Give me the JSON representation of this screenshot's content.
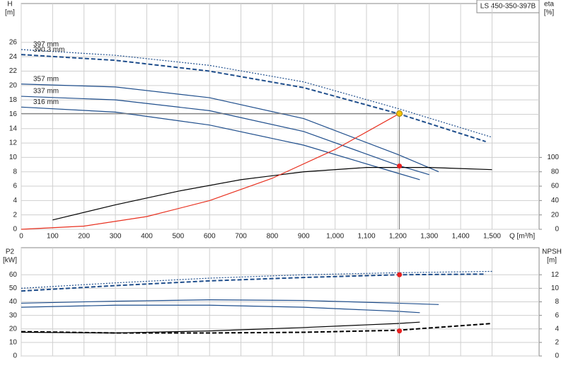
{
  "chart_data": [
    {
      "type": "line",
      "title": "LS 450-350-397B",
      "ylabel": "H",
      "yunit": "[m]",
      "y2label": "eta",
      "y2unit": "[%]",
      "xlabel": "Q [m³/h]",
      "xlim": [
        0,
        1650
      ],
      "ylim": [
        0,
        31.4
      ],
      "y2lim": [
        0,
        314
      ],
      "grid": true,
      "xticks": [
        0,
        100,
        200,
        300,
        400,
        500,
        600,
        700,
        800,
        900,
        {
          "value": 1000,
          "label": "1,000"
        },
        {
          "value": 1100,
          "label": "1,100"
        },
        {
          "value": 1200,
          "label": "1,200"
        },
        {
          "value": 1300,
          "label": "1,300"
        },
        {
          "value": 1400,
          "label": "1,400"
        },
        {
          "value": 1500,
          "label": "1,500"
        }
      ],
      "yticks": [
        0,
        2,
        4,
        6,
        8,
        10,
        12,
        14,
        16,
        18,
        20,
        22,
        24,
        26
      ],
      "y2ticks": [
        0,
        20,
        40,
        60,
        80,
        100
      ],
      "series": [
        {
          "name": "397 mm",
          "color": "#1f4e8c",
          "dash": "dotted",
          "x": [
            0,
            300,
            600,
            900,
            1200,
            1500
          ],
          "values": [
            25,
            24.2,
            22.8,
            20.5,
            16.8,
            12.8
          ]
        },
        {
          "name": "390.3 mm",
          "color": "#1f4e8c",
          "dash": "dashed",
          "x": [
            0,
            300,
            600,
            900,
            1200,
            1480
          ],
          "values": [
            24.3,
            23.5,
            22,
            19.7,
            16.1,
            12.2
          ]
        },
        {
          "name": "357 mm",
          "color": "#1f4e8c",
          "dash": "solid",
          "x": [
            0,
            300,
            600,
            900,
            1200,
            1330
          ],
          "values": [
            20.2,
            19.8,
            18.3,
            15.4,
            10.4,
            8
          ]
        },
        {
          "name": "337 mm",
          "color": "#1f4e8c",
          "dash": "solid",
          "x": [
            0,
            300,
            600,
            900,
            1200,
            1300
          ],
          "values": [
            18.5,
            18,
            16.5,
            13.6,
            8.9,
            7.6
          ]
        },
        {
          "name": "316 mm",
          "color": "#1f4e8c",
          "dash": "solid",
          "x": [
            0,
            300,
            600,
            900,
            1200,
            1270
          ],
          "values": [
            17,
            16.3,
            14.5,
            11.7,
            7.8,
            6.9
          ]
        },
        {
          "color": "#000000",
          "dash": "solid",
          "axis": "y2",
          "x": [
            100,
            300,
            500,
            700,
            900,
            1100,
            1300,
            1500
          ],
          "values": [
            13,
            34,
            53,
            69,
            80,
            86,
            86,
            83
          ]
        },
        {
          "color": "#e8301f",
          "dash": "solid",
          "x": [
            0,
            200,
            400,
            600,
            800,
            1000,
            1205
          ],
          "values": [
            0,
            0.44,
            1.77,
            3.99,
            7.1,
            11.1,
            16.1
          ]
        }
      ],
      "duty_point": {
        "x": 1205,
        "y": 16.1,
        "eta": 88
      }
    },
    {
      "type": "line",
      "ylabel": "P2",
      "yunit": "[kW]",
      "y2label": "NPSH",
      "y2unit": "[m]",
      "xlim": [
        0,
        1650
      ],
      "ylim": [
        0,
        80
      ],
      "y2lim": [
        0,
        16
      ],
      "grid": true,
      "xticks": [
        0,
        100,
        200,
        300,
        400,
        500,
        600,
        700,
        800,
        900,
        1000,
        1100,
        1200,
        1300,
        1400,
        1500
      ],
      "yticks": [
        0,
        10,
        20,
        30,
        40,
        50,
        60
      ],
      "y2ticks": [
        0,
        2,
        4,
        6,
        8,
        10,
        12
      ],
      "series": [
        {
          "color": "#1f4e8c",
          "dash": "dotted",
          "x": [
            0,
            300,
            600,
            900,
            1200,
            1500
          ],
          "values": [
            50,
            54,
            57.5,
            60,
            61.5,
            62.5
          ]
        },
        {
          "color": "#1f4e8c",
          "dash": "dashed",
          "x": [
            0,
            300,
            600,
            900,
            1200,
            1480
          ],
          "values": [
            48,
            52,
            55.5,
            58,
            60,
            60.5
          ]
        },
        {
          "color": "#1f4e8c",
          "dash": "solid",
          "x": [
            0,
            300,
            600,
            900,
            1200,
            1330
          ],
          "values": [
            39,
            40.5,
            41.5,
            41,
            39,
            38
          ]
        },
        {
          "color": "#1f4e8c",
          "dash": "solid",
          "x": [
            0,
            300,
            600,
            900,
            1200,
            1270
          ],
          "values": [
            36,
            37.5,
            37.5,
            36,
            33,
            32
          ]
        },
        {
          "color": "#000000",
          "dash": "dashed",
          "axis": "y2",
          "x": [
            0,
            300,
            600,
            900,
            1200,
            1500
          ],
          "values": [
            3.6,
            3.4,
            3.4,
            3.5,
            3.8,
            4.8
          ]
        },
        {
          "color": "#000000",
          "dash": "solid",
          "axis": "y2",
          "x": [
            0,
            300,
            600,
            900,
            1200,
            1270
          ],
          "values": [
            3.5,
            3.4,
            3.7,
            4.2,
            4.8,
            5
          ]
        }
      ],
      "duty_point": {
        "x": 1205,
        "p2": 60,
        "npsh": 3.7
      }
    }
  ]
}
